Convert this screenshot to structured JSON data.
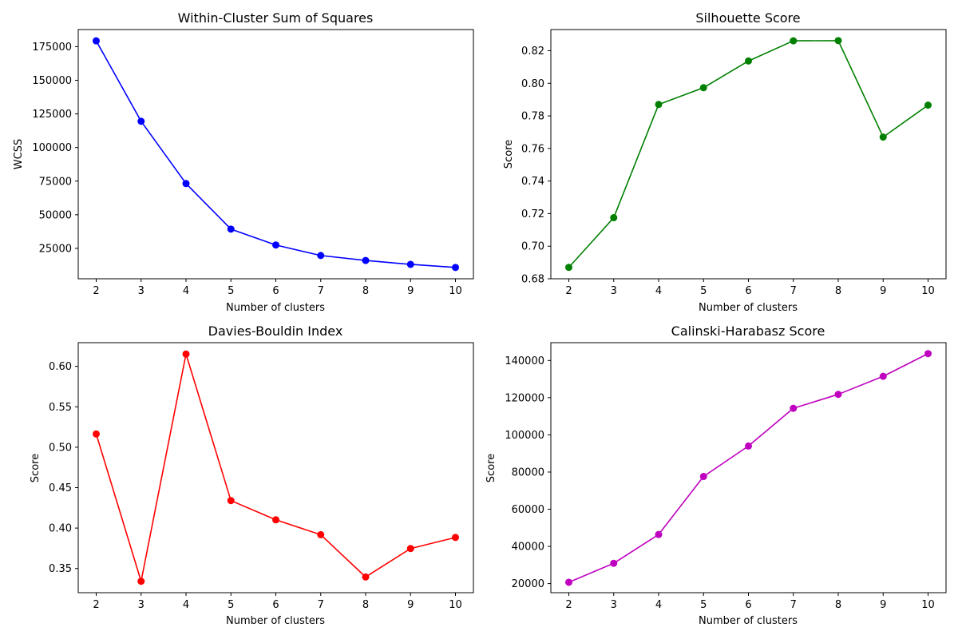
{
  "chart_data": [
    {
      "type": "line",
      "title": "Within-Cluster Sum of Squares",
      "xlabel": "Number of clusters",
      "ylabel": "WCSS",
      "x": [
        2,
        3,
        4,
        5,
        6,
        7,
        8,
        9,
        10
      ],
      "xticks": [
        "2",
        "3",
        "4",
        "5",
        "6",
        "7",
        "8",
        "9",
        "10"
      ],
      "values": [
        179300,
        119500,
        73200,
        39300,
        27500,
        19700,
        16000,
        13100,
        10800
      ],
      "ylim": [
        2400,
        187700
      ],
      "yticks": [
        25000,
        50000,
        75000,
        100000,
        125000,
        150000,
        175000
      ],
      "ytick_labels": [
        "25000",
        "50000",
        "75000",
        "100000",
        "125000",
        "150000",
        "175000"
      ],
      "color": "#0000ff",
      "marker": "circle",
      "grid": false,
      "legend": "none"
    },
    {
      "type": "line",
      "title": "Silhouette Score",
      "xlabel": "Number of clusters",
      "ylabel": "Score",
      "x": [
        2,
        3,
        4,
        5,
        6,
        7,
        8,
        9,
        10
      ],
      "xticks": [
        "2",
        "3",
        "4",
        "5",
        "6",
        "7",
        "8",
        "9",
        "10"
      ],
      "values": [
        0.687,
        0.7175,
        0.787,
        0.7973,
        0.8137,
        0.8261,
        0.8262,
        0.767,
        0.7866
      ],
      "ylim": [
        0.68,
        0.833
      ],
      "yticks": [
        0.68,
        0.7,
        0.72,
        0.74,
        0.76,
        0.78,
        0.8,
        0.82
      ],
      "ytick_labels": [
        "0.68",
        "0.70",
        "0.72",
        "0.74",
        "0.76",
        "0.78",
        "0.80",
        "0.82"
      ],
      "color": "#008000",
      "marker": "circle",
      "grid": false,
      "legend": "none"
    },
    {
      "type": "line",
      "title": "Davies-Bouldin Index",
      "xlabel": "Number of clusters",
      "ylabel": "Score",
      "x": [
        2,
        3,
        4,
        5,
        6,
        7,
        8,
        9,
        10
      ],
      "xticks": [
        "2",
        "3",
        "4",
        "5",
        "6",
        "7",
        "8",
        "9",
        "10"
      ],
      "values": [
        0.5164,
        0.3342,
        0.6152,
        0.434,
        0.4102,
        0.3918,
        0.3395,
        0.3747,
        0.3884
      ],
      "ylim": [
        0.3201,
        0.6293
      ],
      "yticks": [
        0.35,
        0.4,
        0.45,
        0.5,
        0.55,
        0.6
      ],
      "ytick_labels": [
        "0.35",
        "0.40",
        "0.45",
        "0.50",
        "0.55",
        "0.60"
      ],
      "color": "#ff0000",
      "marker": "circle",
      "grid": false,
      "legend": "none"
    },
    {
      "type": "line",
      "title": "Calinski-Harabasz Score",
      "xlabel": "Number of clusters",
      "ylabel": "Score",
      "x": [
        2,
        3,
        4,
        5,
        6,
        7,
        8,
        9,
        10
      ],
      "xticks": [
        "2",
        "3",
        "4",
        "5",
        "6",
        "7",
        "8",
        "9",
        "10"
      ],
      "values": [
        20700,
        30900,
        46400,
        77600,
        94000,
        114300,
        121800,
        131500,
        143700
      ],
      "ylim": [
        15100,
        149600
      ],
      "yticks": [
        20000,
        40000,
        60000,
        80000,
        100000,
        120000,
        140000
      ],
      "ytick_labels": [
        "20000",
        "40000",
        "60000",
        "80000",
        "100000",
        "120000",
        "140000"
      ],
      "color": "#bf00bf",
      "marker": "circle",
      "grid": false,
      "legend": "none"
    }
  ]
}
